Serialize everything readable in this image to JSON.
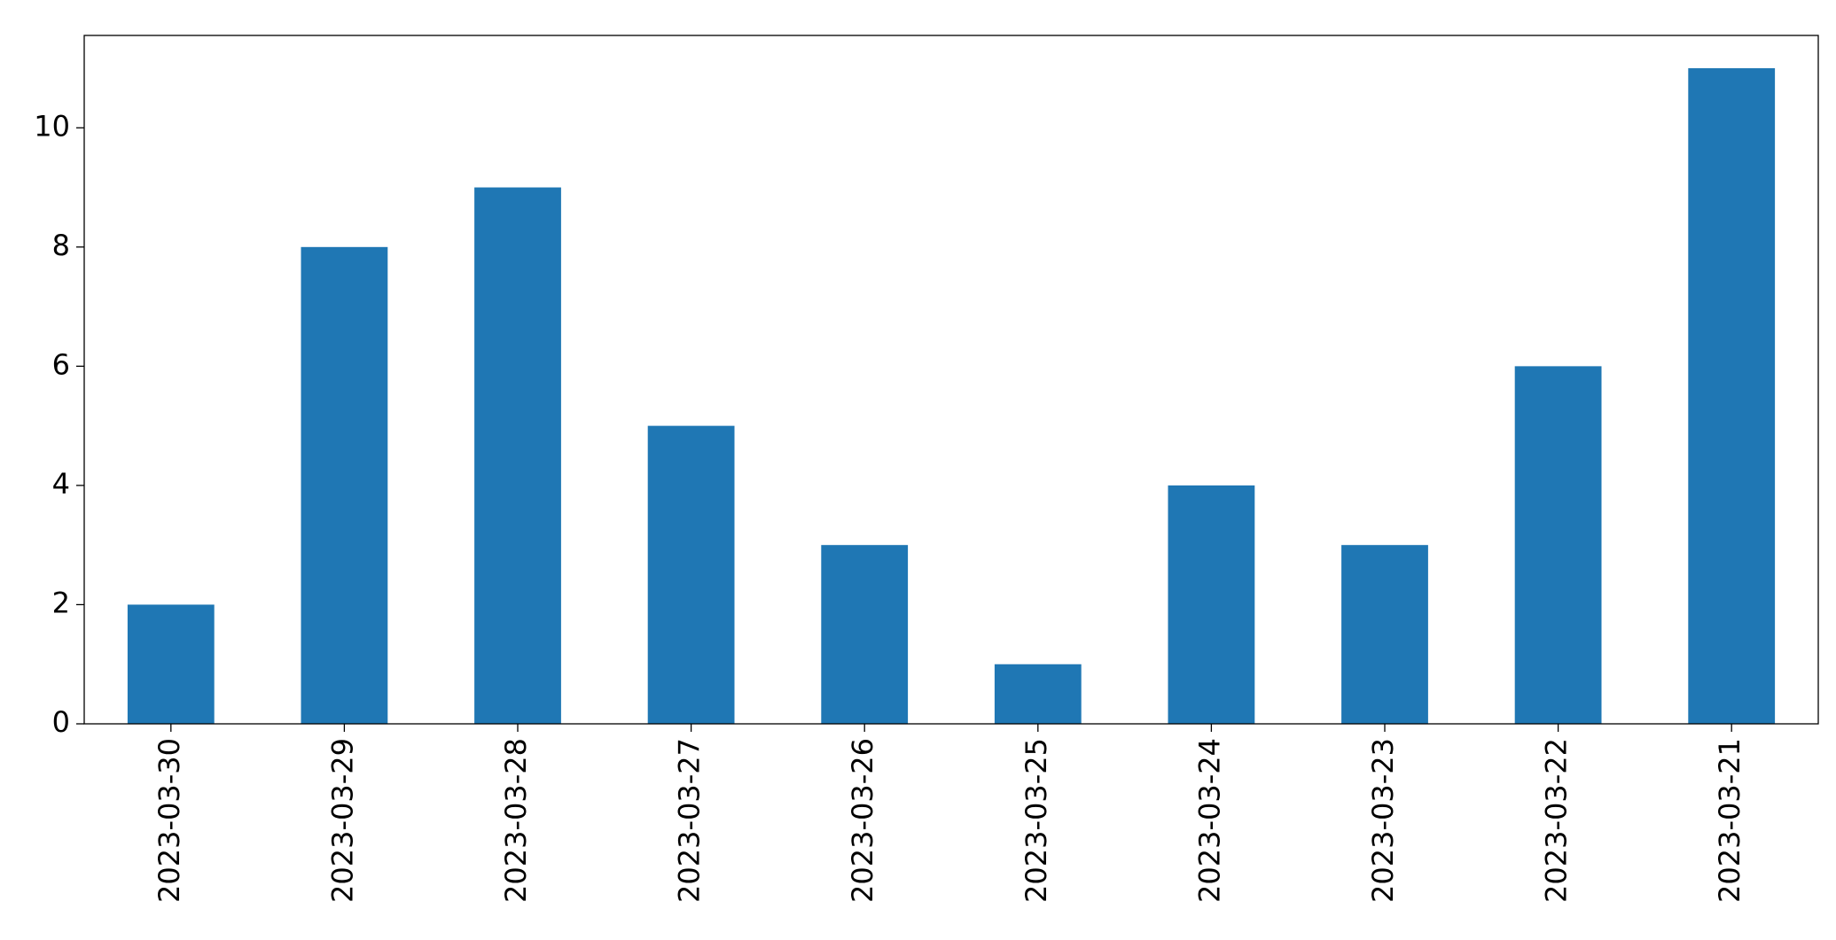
{
  "chart_data": {
    "type": "bar",
    "categories": [
      "2023-03-30",
      "2023-03-29",
      "2023-03-28",
      "2023-03-27",
      "2023-03-26",
      "2023-03-25",
      "2023-03-24",
      "2023-03-23",
      "2023-03-22",
      "2023-03-21"
    ],
    "values": [
      2,
      8,
      9,
      5,
      3,
      1,
      4,
      3,
      6,
      11
    ],
    "color": "#1f77b4",
    "ylim": [
      0,
      11.55
    ],
    "yticks": [
      0,
      2,
      4,
      6,
      8,
      10
    ],
    "grid": false
  }
}
